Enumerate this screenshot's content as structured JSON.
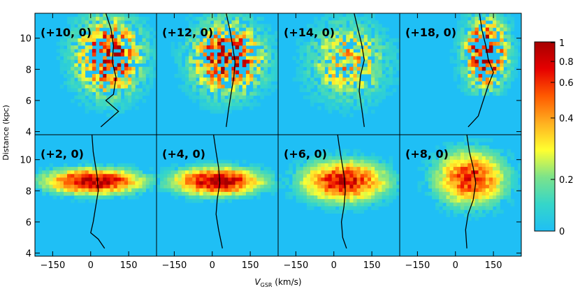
{
  "chart_data": {
    "type": "heatmap",
    "layout": "2x4 panel grid, shared axes",
    "xlabel_main": "V",
    "xlabel_sub": "GSR",
    "xlabel_unit": " (km/s)",
    "ylabel": "Distance (kpc)",
    "xlim": [
      -220,
      260
    ],
    "ylim": [
      3.8,
      11.6
    ],
    "xticks": [
      -150,
      0,
      150
    ],
    "xtick_labels": [
      "−150",
      "0",
      "150"
    ],
    "yticks": [
      4,
      6,
      8,
      10
    ],
    "ytick_labels": [
      "4",
      "6",
      "8",
      "10"
    ],
    "colorbar": {
      "ticks": [
        0,
        0.2,
        0.4,
        0.6,
        0.8,
        1
      ],
      "tick_labels": [
        "0",
        "0.2",
        "0.4",
        "0.6",
        "0.8",
        "1"
      ],
      "colors": [
        "#1fbff5",
        "#35d6c9",
        "#7ce38a",
        "#ffff30",
        "#ffb020",
        "#ff5a00",
        "#e60000",
        "#a60000"
      ]
    },
    "panels": [
      {
        "label": "(+10, 0)",
        "row": 0,
        "col": 0,
        "density": {
          "kind": "cloud",
          "vc": 70,
          "sv": 85,
          "dc": 8.8,
          "sd": 1.6,
          "amp": 0.95,
          "dlow": 5.0
        },
        "trend": [
          [
            40,
            4.3
          ],
          [
            110,
            5.3
          ],
          [
            60,
            6.0
          ],
          [
            90,
            6.4
          ],
          [
            100,
            7.5
          ],
          [
            85,
            8.5
          ],
          [
            90,
            9.5
          ],
          [
            80,
            10.6
          ],
          [
            60,
            11.6
          ]
        ]
      },
      {
        "label": "(+12, 0)",
        "row": 0,
        "col": 1,
        "density": {
          "kind": "cloud",
          "vc": 60,
          "sv": 90,
          "dc": 8.7,
          "sd": 1.5,
          "amp": 0.95,
          "dlow": 5.2
        },
        "trend": [
          [
            55,
            4.3
          ],
          [
            65,
            5.5
          ],
          [
            75,
            6.5
          ],
          [
            85,
            7.5
          ],
          [
            90,
            8.5
          ],
          [
            80,
            9.5
          ],
          [
            70,
            10.5
          ],
          [
            55,
            11.6
          ]
        ]
      },
      {
        "label": "(+14, 0)",
        "row": 0,
        "col": 2,
        "density": {
          "kind": "cloud",
          "vc": 55,
          "sv": 100,
          "dc": 8.5,
          "sd": 1.6,
          "amp": 0.55,
          "dlow": 5.0
        },
        "trend": [
          [
            120,
            4.3
          ],
          [
            110,
            5.5
          ],
          [
            100,
            6.6
          ],
          [
            105,
            7.6
          ],
          [
            120,
            8.6
          ],
          [
            110,
            9.6
          ],
          [
            95,
            10.6
          ],
          [
            80,
            11.6
          ]
        ]
      },
      {
        "label": "(+18, 0)",
        "row": 0,
        "col": 3,
        "density": {
          "kind": "cloud",
          "vc": 120,
          "sv": 55,
          "dc": 9.0,
          "sd": 1.5,
          "amp": 1.0,
          "dlow": 6.4
        },
        "trend": [
          [
            50,
            4.3
          ],
          [
            90,
            5.0
          ],
          [
            110,
            6.0
          ],
          [
            130,
            7.0
          ],
          [
            150,
            7.8
          ],
          [
            130,
            8.6
          ],
          [
            120,
            9.5
          ],
          [
            105,
            10.5
          ],
          [
            95,
            11.6
          ]
        ]
      },
      {
        "label": "(+2, 0)",
        "row": 1,
        "col": 0,
        "density": {
          "kind": "band",
          "vc": 10,
          "sv": 130,
          "dc": 8.6,
          "sd": 0.55,
          "amp": 1.0,
          "dlow": 3.8
        },
        "trend": [
          [
            55,
            4.3
          ],
          [
            30,
            4.9
          ],
          [
            0,
            5.3
          ],
          [
            10,
            6.0
          ],
          [
            20,
            7.0
          ],
          [
            30,
            8.0
          ],
          [
            25,
            9.0
          ],
          [
            10,
            10.5
          ],
          [
            5,
            11.6
          ]
        ]
      },
      {
        "label": "(+4, 0)",
        "row": 1,
        "col": 1,
        "density": {
          "kind": "band",
          "vc": 20,
          "sv": 120,
          "dc": 8.6,
          "sd": 0.6,
          "amp": 1.0,
          "dlow": 3.8
        },
        "trend": [
          [
            40,
            4.3
          ],
          [
            25,
            5.5
          ],
          [
            15,
            6.5
          ],
          [
            20,
            7.5
          ],
          [
            30,
            8.5
          ],
          [
            25,
            9.5
          ],
          [
            15,
            10.5
          ],
          [
            5,
            11.6
          ]
        ]
      },
      {
        "label": "(+6, 0)",
        "row": 1,
        "col": 2,
        "density": {
          "kind": "band",
          "vc": 40,
          "sv": 115,
          "dc": 8.6,
          "sd": 0.9,
          "amp": 0.9,
          "dlow": 3.8
        },
        "trend": [
          [
            50,
            4.3
          ],
          [
            35,
            5.0
          ],
          [
            30,
            6.0
          ],
          [
            40,
            7.0
          ],
          [
            45,
            8.0
          ],
          [
            40,
            9.0
          ],
          [
            30,
            10.0
          ],
          [
            20,
            11.0
          ],
          [
            15,
            11.6
          ]
        ]
      },
      {
        "label": "(+8, 0)",
        "row": 1,
        "col": 3,
        "density": {
          "kind": "band",
          "vc": 60,
          "sv": 95,
          "dc": 8.8,
          "sd": 1.2,
          "amp": 0.8,
          "dlow": 3.8
        },
        "trend": [
          [
            45,
            4.3
          ],
          [
            40,
            5.5
          ],
          [
            50,
            6.5
          ],
          [
            70,
            7.4
          ],
          [
            80,
            8.5
          ],
          [
            70,
            9.5
          ],
          [
            55,
            10.5
          ],
          [
            45,
            11.6
          ]
        ]
      }
    ]
  }
}
